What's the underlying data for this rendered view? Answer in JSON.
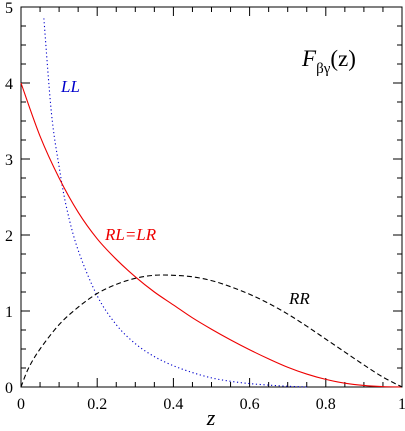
{
  "chart_data": {
    "type": "line",
    "title": "F_{βγ}(z)",
    "title_parts": {
      "base": "F",
      "subscript": "βγ",
      "argument": "(z)"
    },
    "xlabel": "z",
    "ylabel": "",
    "xlim": [
      0,
      1
    ],
    "ylim": [
      0,
      5
    ],
    "x_ticks": [
      0,
      0.2,
      0.4,
      0.6,
      0.8,
      1
    ],
    "x_tick_labels": [
      "0",
      "0.2",
      "0.4",
      "0.6",
      "0.8",
      "1"
    ],
    "y_ticks": [
      0,
      1,
      2,
      3,
      4,
      5
    ],
    "y_tick_labels": [
      "0",
      "1",
      "2",
      "3",
      "4",
      "5"
    ],
    "grid": false,
    "legend": "none",
    "series": [
      {
        "name": "LL",
        "color": "#0000cc",
        "style": "dotted",
        "x": [
          0.06,
          0.08,
          0.1,
          0.12,
          0.15,
          0.2,
          0.25,
          0.3,
          0.35,
          0.4,
          0.45,
          0.5,
          0.55,
          0.6,
          0.65,
          0.7,
          0.75
        ],
        "y": [
          4.85,
          3.6,
          2.9,
          2.35,
          1.8,
          1.2,
          0.82,
          0.57,
          0.4,
          0.28,
          0.19,
          0.12,
          0.075,
          0.045,
          0.025,
          0.01,
          0.0
        ]
      },
      {
        "name": "RL=LR",
        "color": "#ee0000",
        "style": "solid",
        "x": [
          0.0,
          0.05,
          0.1,
          0.15,
          0.2,
          0.25,
          0.3,
          0.35,
          0.4,
          0.45,
          0.5,
          0.55,
          0.6,
          0.65,
          0.7,
          0.75,
          0.8,
          0.85,
          0.9,
          0.95,
          1.0
        ],
        "y": [
          4.0,
          3.3,
          2.75,
          2.3,
          1.95,
          1.68,
          1.45,
          1.25,
          1.08,
          0.91,
          0.76,
          0.62,
          0.49,
          0.37,
          0.26,
          0.17,
          0.1,
          0.05,
          0.02,
          0.005,
          0.0
        ]
      },
      {
        "name": "RR",
        "color": "#000000",
        "style": "dashed",
        "x": [
          0.0,
          0.02,
          0.05,
          0.1,
          0.15,
          0.2,
          0.25,
          0.3,
          0.35,
          0.4,
          0.45,
          0.5,
          0.55,
          0.6,
          0.65,
          0.7,
          0.75,
          0.8,
          0.85,
          0.9,
          0.95,
          1.0
        ],
        "y": [
          0.0,
          0.25,
          0.5,
          0.82,
          1.05,
          1.23,
          1.35,
          1.43,
          1.47,
          1.47,
          1.45,
          1.4,
          1.32,
          1.22,
          1.1,
          0.96,
          0.8,
          0.63,
          0.46,
          0.29,
          0.13,
          0.0
        ]
      }
    ],
    "annotations": [
      {
        "text": "LL",
        "color": "#0000cc"
      },
      {
        "text": "RL=LR",
        "color": "#ee0000"
      },
      {
        "text": "RR",
        "color": "#000000"
      }
    ]
  }
}
